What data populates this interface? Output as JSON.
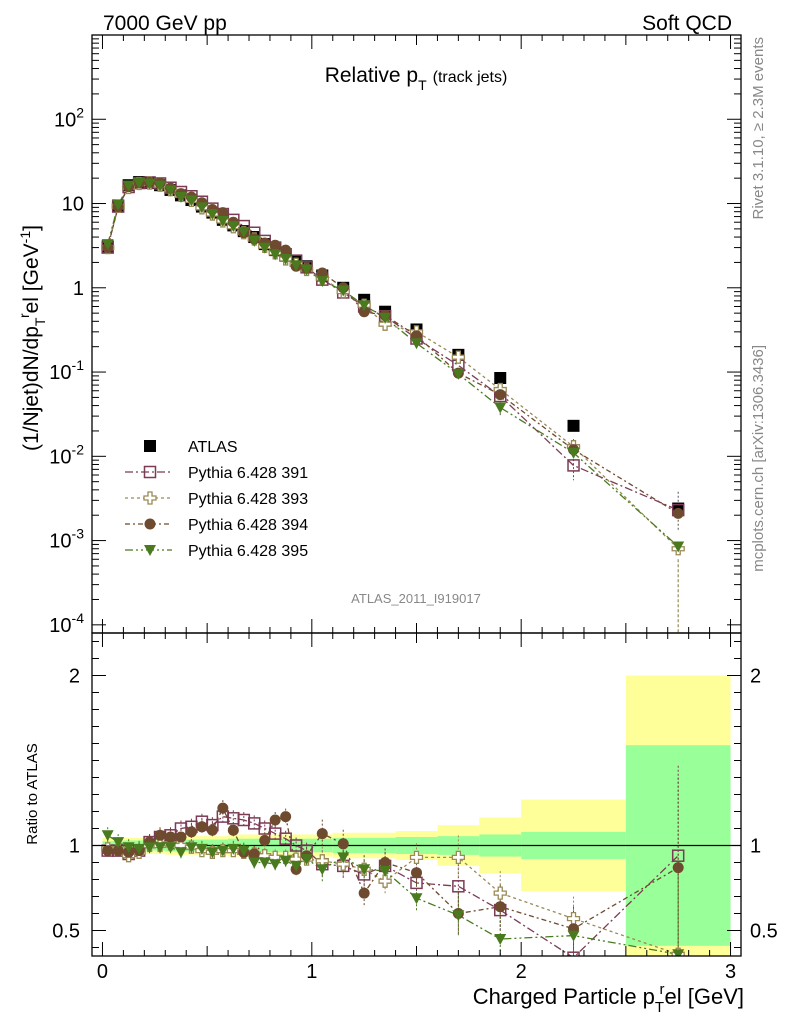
{
  "header": {
    "left": "7000 GeV pp",
    "right": "Soft QCD"
  },
  "side_labels": {
    "rivet": "Rivet 3.1.10, ≥ 2.3M events",
    "mcplots": "mcplots.cern.ch [arXiv:1306.3436]"
  },
  "chart_data": [
    {
      "type": "scatter",
      "title_main": "Relative p",
      "title_sub": "T",
      "title_suffix": "(track jets)",
      "ylabel": "(1/Njet)dN/dp",
      "ylabel_sub": "T",
      "ylabel_sup": "r",
      "ylabel_tail": "el [GeV",
      "ylabel_exp": "-1",
      "ylabel_close": "]",
      "yscale": "log",
      "ylim": [
        8e-05,
        1000
      ],
      "xlim": [
        -0.05,
        3.05
      ],
      "ytick_labels": [
        {
          "v": 0.0001,
          "base": "10",
          "exp": "-4"
        },
        {
          "v": 0.001,
          "base": "10",
          "exp": "-3"
        },
        {
          "v": 0.01,
          "base": "10",
          "exp": "-2"
        },
        {
          "v": 0.1,
          "base": "10",
          "exp": "-1"
        },
        {
          "v": 1,
          "base": "1",
          "exp": ""
        },
        {
          "v": 10,
          "base": "10",
          "exp": ""
        },
        {
          "v": 100,
          "base": "10",
          "exp": "2"
        }
      ],
      "watermark": "ATLAS_2011_I919017",
      "legend_position": "lower-left",
      "series": [
        {
          "name": "ATLAS",
          "color": "#000000",
          "marker": "filled-square",
          "x": [
            0.025,
            0.075,
            0.125,
            0.175,
            0.225,
            0.275,
            0.325,
            0.375,
            0.425,
            0.475,
            0.525,
            0.575,
            0.625,
            0.675,
            0.725,
            0.775,
            0.825,
            0.875,
            0.925,
            0.975,
            1.05,
            1.15,
            1.25,
            1.35,
            1.5,
            1.7,
            1.9,
            2.25,
            2.75
          ],
          "y": [
            3.1,
            9.5,
            16.5,
            18.0,
            17.5,
            16.5,
            14.5,
            12.5,
            11.0,
            9.2,
            7.8,
            6.4,
            5.5,
            4.7,
            4.0,
            3.3,
            2.8,
            2.4,
            2.1,
            1.8,
            1.4,
            1.0,
            0.72,
            0.52,
            0.32,
            0.16,
            0.085,
            0.023,
            0.0024
          ]
        },
        {
          "name": "Pythia 6.428 391",
          "color": "#7b3b55",
          "marker": "open-square",
          "x": [
            0.025,
            0.075,
            0.125,
            0.175,
            0.225,
            0.275,
            0.325,
            0.375,
            0.425,
            0.475,
            0.525,
            0.575,
            0.625,
            0.675,
            0.725,
            0.775,
            0.825,
            0.875,
            0.925,
            0.975,
            1.05,
            1.15,
            1.25,
            1.35,
            1.5,
            1.7,
            1.9,
            2.25,
            2.75
          ],
          "y": [
            3.0,
            9.2,
            15.7,
            17.5,
            17.8,
            17.3,
            15.4,
            13.7,
            12.2,
            10.5,
            8.7,
            7.5,
            6.4,
            5.4,
            4.5,
            3.6,
            3.0,
            2.5,
            2.1,
            1.75,
            1.25,
            0.88,
            0.6,
            0.46,
            0.25,
            0.12,
            0.052,
            0.0078,
            0.0023
          ]
        },
        {
          "name": "Pythia 6.428 393",
          "color": "#9a8a55",
          "marker": "open-cross",
          "x": [
            0.025,
            0.075,
            0.125,
            0.175,
            0.225,
            0.275,
            0.325,
            0.375,
            0.425,
            0.475,
            0.525,
            0.575,
            0.625,
            0.675,
            0.725,
            0.775,
            0.825,
            0.875,
            0.925,
            0.975,
            1.05,
            1.15,
            1.25,
            1.35,
            1.5,
            1.7,
            1.9,
            2.25,
            2.75
          ],
          "y": [
            3.0,
            9.3,
            15.5,
            17.3,
            17.5,
            16.5,
            14.6,
            12.5,
            10.9,
            8.9,
            7.5,
            6.2,
            5.3,
            4.5,
            3.8,
            3.1,
            2.6,
            2.2,
            1.9,
            1.65,
            1.3,
            0.9,
            0.62,
            0.37,
            0.3,
            0.15,
            0.062,
            0.013,
            0.0008
          ]
        },
        {
          "name": "Pythia 6.428 394",
          "color": "#6e4a2e",
          "marker": "filled-circle",
          "x": [
            0.025,
            0.075,
            0.125,
            0.175,
            0.225,
            0.275,
            0.325,
            0.375,
            0.425,
            0.475,
            0.525,
            0.575,
            0.625,
            0.675,
            0.725,
            0.775,
            0.825,
            0.875,
            0.925,
            0.975,
            1.05,
            1.15,
            1.25,
            1.35,
            1.5,
            1.7,
            1.9,
            2.25,
            2.75
          ],
          "y": [
            3.0,
            9.2,
            15.8,
            17.5,
            17.8,
            17.5,
            15.2,
            13.1,
            11.9,
            10.2,
            8.5,
            7.8,
            6.0,
            4.5,
            3.8,
            3.4,
            3.2,
            2.8,
            1.8,
            1.7,
            1.5,
            1.0,
            0.52,
            0.47,
            0.27,
            0.097,
            0.054,
            0.012,
            0.0021
          ]
        },
        {
          "name": "Pythia 6.428 395",
          "color": "#4a7a1e",
          "marker": "filled-triangle-down",
          "x": [
            0.025,
            0.075,
            0.125,
            0.175,
            0.225,
            0.275,
            0.325,
            0.375,
            0.425,
            0.475,
            0.525,
            0.575,
            0.625,
            0.675,
            0.725,
            0.775,
            0.825,
            0.875,
            0.925,
            0.975,
            1.05,
            1.15,
            1.25,
            1.35,
            1.5,
            1.7,
            1.9,
            2.25,
            2.75
          ],
          "y": [
            3.3,
            9.7,
            16.3,
            17.6,
            17.3,
            16.3,
            14.3,
            12.0,
            10.9,
            9.0,
            7.5,
            6.2,
            5.4,
            4.6,
            3.6,
            3.0,
            2.5,
            2.2,
            1.85,
            1.65,
            1.2,
            0.93,
            0.62,
            0.44,
            0.22,
            0.095,
            0.038,
            0.011,
            0.00085
          ]
        }
      ]
    },
    {
      "type": "scatter",
      "ylabel": "Ratio to ATLAS",
      "xlabel_main": "Charged Particle p",
      "xlabel_sub": "T",
      "xlabel_sup": "r",
      "xlabel_tail": "el [GeV]",
      "ylim": [
        0.35,
        2.25
      ],
      "xlim": [
        -0.05,
        3.05
      ],
      "xtick_labels": [
        "0",
        "1",
        "2",
        "3"
      ],
      "ytick_labels": [
        "0.5",
        "1",
        "2"
      ],
      "reference_line": 1,
      "bands": [
        {
          "xlo": 0.0,
          "xhi": 0.1,
          "inner": 0.025,
          "outer": 0.045
        },
        {
          "xlo": 0.1,
          "xhi": 0.2,
          "inner": 0.03,
          "outer": 0.045
        },
        {
          "xlo": 0.2,
          "xhi": 0.3,
          "inner": 0.03,
          "outer": 0.05
        },
        {
          "xlo": 0.3,
          "xhi": 0.6,
          "inner": 0.035,
          "outer": 0.055
        },
        {
          "xlo": 0.6,
          "xhi": 1.1,
          "inner": 0.04,
          "outer": 0.065
        },
        {
          "xlo": 1.1,
          "xhi": 1.4,
          "inner": 0.045,
          "outer": 0.075
        },
        {
          "xlo": 1.4,
          "xhi": 1.6,
          "inner": 0.05,
          "outer": 0.085
        },
        {
          "xlo": 1.6,
          "xhi": 1.8,
          "inner": 0.055,
          "outer": 0.12
        },
        {
          "xlo": 1.8,
          "xhi": 2.0,
          "inner": 0.065,
          "outer": 0.165
        },
        {
          "xlo": 2.0,
          "xhi": 2.5,
          "inner": 0.08,
          "outer": 0.27
        },
        {
          "xlo": 2.5,
          "xhi": 3.0,
          "inner": 0.59,
          "outer": 1.0
        }
      ],
      "series": [
        {
          "name": "Pythia 6.428 391",
          "x": [
            0.025,
            0.075,
            0.125,
            0.175,
            0.225,
            0.275,
            0.325,
            0.375,
            0.425,
            0.475,
            0.525,
            0.575,
            0.625,
            0.675,
            0.725,
            0.775,
            0.825,
            0.875,
            0.925,
            0.975,
            1.05,
            1.15,
            1.25,
            1.35,
            1.5,
            1.7,
            1.9,
            2.25,
            2.75
          ],
          "y": [
            0.97,
            0.97,
            0.95,
            0.97,
            1.02,
            1.05,
            1.06,
            1.1,
            1.11,
            1.14,
            1.12,
            1.17,
            1.16,
            1.15,
            1.13,
            1.1,
            1.07,
            1.04,
            1.0,
            0.97,
            0.89,
            0.88,
            0.83,
            0.88,
            0.78,
            0.76,
            0.62,
            0.34,
            0.94
          ]
        },
        {
          "name": "Pythia 6.428 393",
          "x": [
            0.025,
            0.075,
            0.125,
            0.175,
            0.225,
            0.275,
            0.325,
            0.375,
            0.425,
            0.475,
            0.525,
            0.575,
            0.625,
            0.675,
            0.725,
            0.775,
            0.825,
            0.875,
            0.925,
            0.975,
            1.05,
            1.15,
            1.25,
            1.35,
            1.5,
            1.7,
            1.9,
            2.25,
            2.75
          ],
          "y": [
            0.98,
            0.98,
            0.94,
            0.96,
            1.0,
            1.0,
            1.01,
            1.0,
            0.99,
            0.97,
            0.96,
            0.97,
            0.97,
            0.96,
            0.95,
            0.94,
            0.93,
            0.93,
            0.92,
            0.92,
            0.91,
            0.89,
            0.86,
            0.79,
            0.93,
            0.93,
            0.72,
            0.57,
            0.36
          ]
        },
        {
          "name": "Pythia 6.428 394",
          "x": [
            0.025,
            0.075,
            0.125,
            0.175,
            0.225,
            0.275,
            0.325,
            0.375,
            0.425,
            0.475,
            0.525,
            0.575,
            0.625,
            0.675,
            0.725,
            0.775,
            0.825,
            0.875,
            0.925,
            0.975,
            1.05,
            1.15,
            1.25,
            1.35,
            1.5,
            1.7,
            1.9,
            2.25,
            2.75
          ],
          "y": [
            0.97,
            0.97,
            0.96,
            0.97,
            1.02,
            1.06,
            1.05,
            1.05,
            1.08,
            1.11,
            1.09,
            1.22,
            1.09,
            0.96,
            0.95,
            1.03,
            1.15,
            1.17,
            0.86,
            0.94,
            1.07,
            1.01,
            0.72,
            0.9,
            0.84,
            0.6,
            0.64,
            0.51,
            0.87
          ]
        },
        {
          "name": "Pythia 6.428 395",
          "x": [
            0.025,
            0.075,
            0.125,
            0.175,
            0.225,
            0.275,
            0.325,
            0.375,
            0.425,
            0.475,
            0.525,
            0.575,
            0.625,
            0.675,
            0.725,
            0.775,
            0.825,
            0.875,
            0.925,
            0.975,
            1.05,
            1.15,
            1.25,
            1.35,
            1.5,
            1.7,
            1.9,
            2.25,
            2.75
          ],
          "y": [
            1.06,
            1.02,
            0.99,
            0.98,
            0.99,
            0.99,
            0.99,
            0.96,
            0.99,
            0.98,
            0.96,
            0.97,
            0.98,
            0.97,
            0.9,
            0.9,
            0.89,
            0.91,
            0.88,
            0.92,
            0.86,
            0.93,
            0.86,
            0.85,
            0.69,
            0.59,
            0.45,
            0.47,
            0.36
          ]
        }
      ]
    }
  ],
  "colors": {
    "band_inner": "#99ff99",
    "band_outer": "#ffff99"
  }
}
